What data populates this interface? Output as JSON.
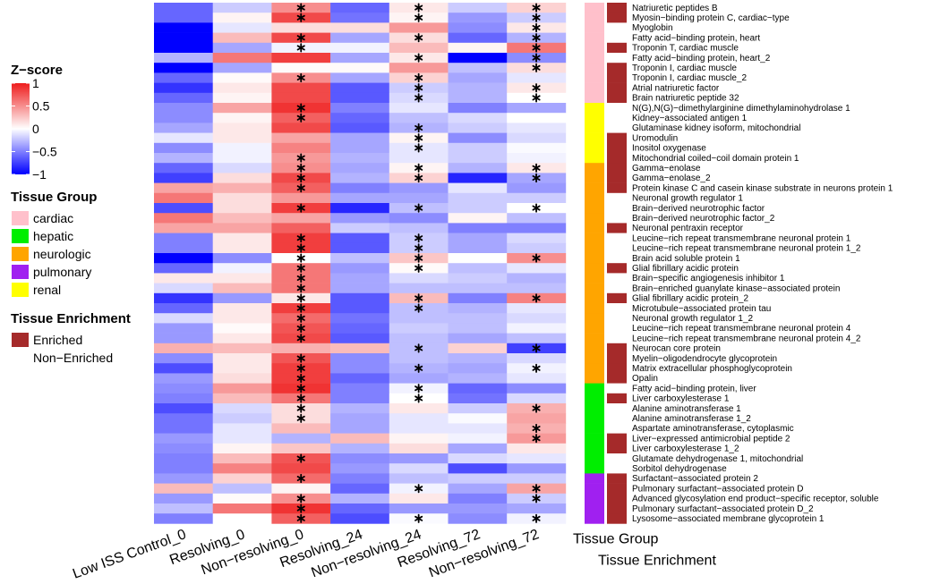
{
  "chart_data": {
    "type": "heatmap",
    "columns": [
      "Low ISS Control_0",
      "Resolving_0",
      "Non−resolving_0",
      "Resolving_24",
      "Non−resolving_24",
      "Resolving_72",
      "Non−resolving_72"
    ],
    "annotation_columns": [
      "Tissue Group",
      "Tissue Enrichment"
    ],
    "color_scale": {
      "title": "Z−score",
      "min": -1,
      "max": 1,
      "low": "#0000ff",
      "mid": "#ffffff",
      "high": "#ee1c1c",
      "ticks": [
        "1",
        "0.5",
        "0",
        "−0.5",
        "−1"
      ],
      "tick_values": [
        1,
        0.5,
        0,
        -0.5,
        -1
      ]
    },
    "tissue_group_legend": {
      "title": "Tissue Group",
      "items": [
        {
          "label": "cardiac",
          "color": "#ffc0cb"
        },
        {
          "label": "hepatic",
          "color": "#00ee00"
        },
        {
          "label": "neurologic",
          "color": "#ffa500"
        },
        {
          "label": "pulmonary",
          "color": "#a020f0"
        },
        {
          "label": "renal",
          "color": "#ffff00"
        }
      ]
    },
    "enrichment_legend": {
      "title": "Tissue Enrichment",
      "items": [
        {
          "label": "Enriched",
          "color": "#a52a2a"
        },
        {
          "label": "Non−Enriched",
          "color": "#ffffff"
        }
      ]
    },
    "rows": [
      {
        "label": "Natriuretic peptides B",
        "group": "cardiac",
        "enriched": true,
        "values": [
          -0.6,
          -0.2,
          0.5,
          -0.6,
          0.1,
          -0.2,
          0.2
        ],
        "sig": [
          2,
          4,
          6
        ]
      },
      {
        "label": "Myosin−binding protein C, cardiac−type",
        "group": "cardiac",
        "enriched": true,
        "values": [
          -0.6,
          0.05,
          0.8,
          -0.55,
          0.05,
          -0.4,
          -0.2
        ],
        "sig": [
          2,
          4,
          6
        ]
      },
      {
        "label": "Myoglobin",
        "group": "cardiac",
        "enriched": false,
        "values": [
          -1,
          -0.1,
          0.15,
          0.15,
          0.45,
          -0.45,
          0.1
        ],
        "sig": [
          6
        ]
      },
      {
        "label": "Fatty acid−binding protein, heart",
        "group": "cardiac",
        "enriched": false,
        "values": [
          -1,
          0.3,
          0.8,
          -0.35,
          0.15,
          -0.6,
          -0.3
        ],
        "sig": [
          2,
          4,
          6
        ]
      },
      {
        "label": "Troponin T, cardiac muscle",
        "group": "cardiac",
        "enriched": true,
        "values": [
          -1,
          -0.35,
          -0.05,
          -0.05,
          0.3,
          0.05,
          0.6
        ],
        "sig": [
          2,
          6
        ]
      },
      {
        "label": "Fatty acid−binding protein, heart_2",
        "group": "cardiac",
        "enriched": false,
        "values": [
          -0.3,
          0.6,
          0.85,
          -0.35,
          0.1,
          -1,
          -0.45
        ],
        "sig": [
          4,
          6
        ]
      },
      {
        "label": "Troponin I, cardiac muscle",
        "group": "cardiac",
        "enriched": true,
        "values": [
          -1,
          -0.35,
          0.02,
          0.02,
          0.45,
          -0.25,
          0.15
        ],
        "sig": [
          6
        ]
      },
      {
        "label": "Troponin I, cardiac muscle_2",
        "group": "cardiac",
        "enriched": true,
        "values": [
          -0.6,
          0.02,
          0.5,
          -0.35,
          0.2,
          -0.35,
          -0.1
        ],
        "sig": [
          2,
          4
        ]
      },
      {
        "label": "Atrial natriuretic factor",
        "group": "cardiac",
        "enriched": true,
        "values": [
          -0.8,
          0.1,
          0.8,
          -0.65,
          -0.2,
          -0.3,
          0.1
        ],
        "sig": [
          4,
          6
        ]
      },
      {
        "label": "Brain natriuretic peptide 32",
        "group": "cardiac",
        "enriched": true,
        "values": [
          -0.6,
          0.05,
          0.8,
          -0.65,
          -0.15,
          -0.3,
          0.0
        ],
        "sig": [
          4,
          6
        ]
      },
      {
        "label": "N(G),N(G)−dimethylarginine dimethylaminohydrolase 1",
        "group": "renal",
        "enriched": false,
        "values": [
          -0.45,
          0.4,
          0.9,
          -0.5,
          -0.1,
          -0.5,
          -0.35
        ],
        "sig": [
          2
        ]
      },
      {
        "label": "Kidney−associated antigen 1",
        "group": "renal",
        "enriched": false,
        "values": [
          -0.45,
          0.05,
          0.7,
          -0.6,
          -0.25,
          -0.15,
          0.0
        ],
        "sig": [
          2
        ]
      },
      {
        "label": "Glutaminase kidney isoform, mitochondrial",
        "group": "renal",
        "enriched": false,
        "values": [
          -0.35,
          0.1,
          0.8,
          -0.65,
          -0.3,
          -0.2,
          -0.1
        ],
        "sig": [
          4
        ]
      },
      {
        "label": "Uromodulin",
        "group": "renal",
        "enriched": true,
        "values": [
          -0.1,
          0.1,
          0.4,
          -0.35,
          0.05,
          -0.45,
          -0.15
        ],
        "sig": [
          4
        ]
      },
      {
        "label": "Inositol oxygenase",
        "group": "renal",
        "enriched": true,
        "values": [
          -0.45,
          -0.05,
          0.55,
          -0.35,
          -0.1,
          -0.2,
          -0.02
        ],
        "sig": [
          4
        ]
      },
      {
        "label": "Mitochondrial coiled−coil domain protein 1",
        "group": "renal",
        "enriched": true,
        "values": [
          -0.3,
          -0.05,
          0.45,
          -0.3,
          -0.1,
          -0.2,
          -0.05
        ],
        "sig": [
          2
        ]
      },
      {
        "label": "Gamma−enolase",
        "group": "neurologic",
        "enriched": true,
        "values": [
          -0.6,
          -0.15,
          0.5,
          -0.35,
          0.05,
          -0.3,
          0.1
        ],
        "sig": [
          2,
          4,
          6
        ]
      },
      {
        "label": "Gamma−enolase_2",
        "group": "neurologic",
        "enriched": true,
        "values": [
          -0.75,
          0.15,
          0.8,
          -0.3,
          0.2,
          -0.85,
          -0.35
        ],
        "sig": [
          2,
          4,
          6
        ]
      },
      {
        "label": "Protein kinase C and casein kinase substrate in neurons protein 1",
        "group": "neurologic",
        "enriched": true,
        "values": [
          0.4,
          0.35,
          0.7,
          -0.5,
          -0.4,
          -0.1,
          -0.4
        ],
        "sig": [
          2
        ]
      },
      {
        "label": "Neuronal growth regulator 1",
        "group": "neurologic",
        "enriched": false,
        "values": [
          0.6,
          0.15,
          0.45,
          -0.35,
          -0.35,
          -0.2,
          -0.2
        ],
        "sig": []
      },
      {
        "label": "Brain−derived neurotrophic factor",
        "group": "neurologic",
        "enriched": false,
        "values": [
          -0.7,
          0.15,
          0.85,
          -0.85,
          -0.25,
          -0.2,
          0.0
        ],
        "sig": [
          2,
          4,
          6
        ]
      },
      {
        "label": "Brain−derived neurotrophic factor_2",
        "group": "neurologic",
        "enriched": false,
        "values": [
          0.6,
          0.3,
          0.4,
          -0.4,
          -0.45,
          0.05,
          -0.25
        ],
        "sig": []
      },
      {
        "label": "Neuronal pentraxin receptor",
        "group": "neurologic",
        "enriched": true,
        "values": [
          0.4,
          0.4,
          0.7,
          -0.2,
          -0.25,
          -0.5,
          -0.5
        ],
        "sig": []
      },
      {
        "label": "Leucine−rich repeat transmembrane neuronal protein 1",
        "group": "neurologic",
        "enriched": false,
        "values": [
          -0.5,
          0.1,
          0.85,
          -0.65,
          -0.2,
          -0.35,
          -0.15
        ],
        "sig": [
          2,
          4
        ]
      },
      {
        "label": "Leucine−rich repeat transmembrane neuronal protein 1_2",
        "group": "neurologic",
        "enriched": false,
        "values": [
          -0.5,
          0.1,
          0.85,
          -0.65,
          -0.2,
          -0.35,
          -0.2
        ],
        "sig": [
          2,
          4
        ]
      },
      {
        "label": "Brain acid soluble protein 1",
        "group": "neurologic",
        "enriched": false,
        "values": [
          -1,
          -0.45,
          0.0,
          -0.25,
          0.25,
          0.0,
          0.5
        ],
        "sig": [
          2,
          4,
          6
        ]
      },
      {
        "label": "Glial fibrillary acidic protein",
        "group": "neurologic",
        "enriched": true,
        "values": [
          -0.6,
          -0.05,
          0.6,
          -0.4,
          0.02,
          -0.25,
          -0.1
        ],
        "sig": [
          2,
          4
        ]
      },
      {
        "label": "Brain−specific angiogenesis inhibitor 1",
        "group": "neurologic",
        "enriched": false,
        "values": [
          0.1,
          0.1,
          0.6,
          -0.35,
          -0.15,
          -0.2,
          -0.3
        ],
        "sig": [
          2
        ]
      },
      {
        "label": "Brain−enriched guanylate kinase−associated protein",
        "group": "neurologic",
        "enriched": false,
        "values": [
          -0.15,
          0.3,
          0.6,
          -0.35,
          -0.25,
          -0.25,
          -0.25
        ],
        "sig": [
          2
        ]
      },
      {
        "label": "Glial fibrillary acidic protein_2",
        "group": "neurologic",
        "enriched": true,
        "values": [
          -0.8,
          -0.4,
          0.1,
          -0.65,
          0.3,
          -0.5,
          0.55
        ],
        "sig": [
          2,
          4,
          6
        ]
      },
      {
        "label": "Microtubule−associated protein tau",
        "group": "neurologic",
        "enriched": false,
        "values": [
          -0.6,
          0.1,
          0.85,
          -0.65,
          -0.25,
          -0.3,
          -0.1
        ],
        "sig": [
          2,
          4
        ]
      },
      {
        "label": "Neuronal growth regulator 1_2",
        "group": "neurologic",
        "enriched": false,
        "values": [
          -0.15,
          0.1,
          0.65,
          -0.55,
          -0.25,
          -0.25,
          -0.15
        ],
        "sig": [
          2
        ]
      },
      {
        "label": "Leucine−rich repeat transmembrane neuronal protein 4",
        "group": "neurologic",
        "enriched": false,
        "values": [
          -0.4,
          0.02,
          0.75,
          -0.6,
          -0.2,
          -0.25,
          -0.05
        ],
        "sig": [
          2
        ]
      },
      {
        "label": "Leucine−rich repeat transmembrane neuronal protein 4_2",
        "group": "neurologic",
        "enriched": false,
        "values": [
          -0.4,
          0.1,
          0.8,
          -0.65,
          -0.25,
          -0.35,
          -0.25
        ],
        "sig": [
          2
        ]
      },
      {
        "label": "Neurocan core protein",
        "group": "neurologic",
        "enriched": true,
        "values": [
          0.35,
          0.3,
          0.35,
          0.3,
          -0.25,
          0.2,
          -0.75
        ],
        "sig": [
          4,
          6
        ]
      },
      {
        "label": "Myelin−oligodendrocyte glycoprotein",
        "group": "neurologic",
        "enriched": true,
        "values": [
          -0.45,
          0.1,
          0.75,
          -0.45,
          -0.25,
          -0.3,
          -0.15
        ],
        "sig": [
          2
        ]
      },
      {
        "label": "Matrix extracellular phosphoglycoprotein",
        "group": "neurologic",
        "enriched": true,
        "values": [
          -0.7,
          0.1,
          0.85,
          -0.45,
          -0.3,
          -0.35,
          -0.05
        ],
        "sig": [
          2,
          4,
          6
        ]
      },
      {
        "label": "Opalin",
        "group": "neurologic",
        "enriched": true,
        "values": [
          -0.4,
          0.15,
          0.85,
          -0.6,
          -0.35,
          -0.3,
          -0.1
        ],
        "sig": [
          2
        ]
      },
      {
        "label": "Fatty acid−binding protein, liver",
        "group": "hepatic",
        "enriched": false,
        "values": [
          -0.45,
          0.45,
          0.9,
          -0.5,
          -0.05,
          -0.6,
          -0.45
        ],
        "sig": [
          2,
          4
        ]
      },
      {
        "label": "Liver carboxylesterase 1",
        "group": "hepatic",
        "enriched": true,
        "values": [
          -0.5,
          0.3,
          0.6,
          -0.5,
          0.0,
          -0.55,
          -0.15
        ],
        "sig": [
          2,
          4
        ]
      },
      {
        "label": "Alanine aminotransferase 1",
        "group": "hepatic",
        "enriched": false,
        "values": [
          -0.7,
          -0.15,
          0.15,
          -0.3,
          0.1,
          -0.2,
          0.35
        ],
        "sig": [
          2,
          6
        ]
      },
      {
        "label": "Alanine aminotransferase 1_2",
        "group": "hepatic",
        "enriched": false,
        "values": [
          -0.55,
          -0.2,
          0.15,
          -0.35,
          -0.1,
          -0.02,
          0.4
        ],
        "sig": [
          2
        ]
      },
      {
        "label": "Aspartate aminotransferase, cytoplasmic",
        "group": "hepatic",
        "enriched": false,
        "values": [
          -0.55,
          -0.1,
          0.3,
          -0.35,
          -0.1,
          -0.1,
          0.35
        ],
        "sig": [
          6
        ]
      },
      {
        "label": "Liver−expressed antimicrobial peptide 2",
        "group": "hepatic",
        "enriched": true,
        "values": [
          -0.4,
          -0.1,
          -0.3,
          0.3,
          0.05,
          -0.05,
          0.45
        ],
        "sig": [
          6
        ]
      },
      {
        "label": "Liver carboxylesterase 1_2",
        "group": "hepatic",
        "enriched": true,
        "values": [
          -0.45,
          0.05,
          0.25,
          -0.3,
          0.15,
          -0.35,
          0.1
        ],
        "sig": []
      },
      {
        "label": "Glutamate dehydrogenase 1, mitochondrial",
        "group": "hepatic",
        "enriched": false,
        "values": [
          -0.5,
          0.3,
          0.75,
          -0.45,
          -0.4,
          -0.15,
          -0.1
        ],
        "sig": [
          2
        ]
      },
      {
        "label": "Sorbitol dehydrogenase",
        "group": "hepatic",
        "enriched": false,
        "values": [
          -0.5,
          0.55,
          0.8,
          -0.4,
          -0.15,
          -0.7,
          -0.4
        ],
        "sig": []
      },
      {
        "label": "Surfactant−associated protein 2",
        "group": "pulmonary",
        "enriched": true,
        "values": [
          -0.4,
          0.2,
          0.65,
          -0.5,
          -0.25,
          -0.2,
          -0.2
        ],
        "sig": [
          2
        ]
      },
      {
        "label": "Pulmonary surfactant−associated protein D",
        "group": "pulmonary",
        "enriched": true,
        "values": [
          0.3,
          -0.25,
          0.05,
          -0.6,
          -0.05,
          -0.35,
          0.4
        ],
        "sig": [
          4,
          6
        ]
      },
      {
        "label": "Advanced glycosylation end product−specific receptor, soluble",
        "group": "pulmonary",
        "enriched": true,
        "values": [
          -0.4,
          0.02,
          0.5,
          -0.3,
          0.1,
          -0.5,
          -0.2
        ],
        "sig": [
          2,
          6
        ]
      },
      {
        "label": "Pulmonary surfactant−associated protein D_2",
        "group": "pulmonary",
        "enriched": true,
        "values": [
          -0.25,
          0.6,
          0.9,
          -0.6,
          -0.4,
          -0.4,
          -0.35
        ],
        "sig": [
          2
        ]
      },
      {
        "label": "Lysosome−associated membrane glycoprotein 1",
        "group": "pulmonary",
        "enriched": true,
        "values": [
          -0.5,
          0.0,
          0.7,
          -0.7,
          -0.02,
          -0.45,
          -0.05
        ],
        "sig": [
          2,
          4,
          6
        ]
      }
    ]
  }
}
